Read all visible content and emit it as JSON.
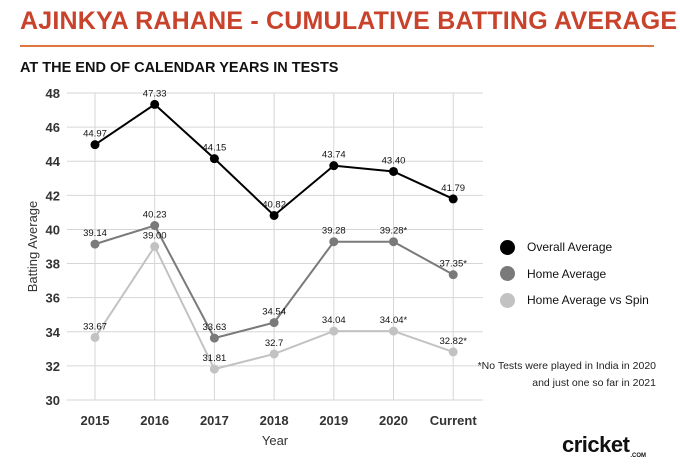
{
  "header": {
    "title": "AJINKYA RAHANE - CUMULATIVE BATTING AVERAGE",
    "subtitle": "AT THE END OF CALENDAR YEARS IN TESTS"
  },
  "colors": {
    "title": "#c9432c",
    "rule": "#e0763f",
    "overall": "#000000",
    "home": "#7a7a7a",
    "spin": "#c2c2c2",
    "grid": "#d6d6d6"
  },
  "footnote": "*No Tests were played in India in 2020 and just one so far in 2021",
  "logo": {
    "word": "cricket",
    "sub": ".COM"
  },
  "chart_data": {
    "type": "line",
    "categories": [
      "2015",
      "2016",
      "2017",
      "2018",
      "2019",
      "2020",
      "Current"
    ],
    "xlabel": "Year",
    "ylabel": "Batting Average",
    "ylim": [
      30,
      48
    ],
    "yticks": [
      30,
      32,
      34,
      36,
      38,
      40,
      42,
      44,
      46,
      48
    ],
    "grid": true,
    "legend_position": "right",
    "series": [
      {
        "name": "Overall Average",
        "color": "#000000",
        "values": [
          44.97,
          47.33,
          44.15,
          40.82,
          43.74,
          43.4,
          41.79
        ],
        "labels": [
          "44.97",
          "47.33",
          "44.15",
          "40.82",
          "43.74",
          "43.40",
          "41.79"
        ]
      },
      {
        "name": "Home Average",
        "color": "#7a7a7a",
        "values": [
          39.14,
          40.23,
          33.63,
          34.54,
          39.28,
          39.28,
          37.35
        ],
        "labels": [
          "39.14",
          "40.23",
          "33.63",
          "34.54",
          "39.28",
          "39.28*",
          "37.35*"
        ]
      },
      {
        "name": "Home Average vs Spin",
        "color": "#c2c2c2",
        "values": [
          33.67,
          39.0,
          31.81,
          32.7,
          34.04,
          34.04,
          32.82
        ],
        "labels": [
          "33.67",
          "39.00",
          "31.81",
          "32.7",
          "34.04",
          "34.04*",
          "32.82*"
        ]
      }
    ]
  }
}
